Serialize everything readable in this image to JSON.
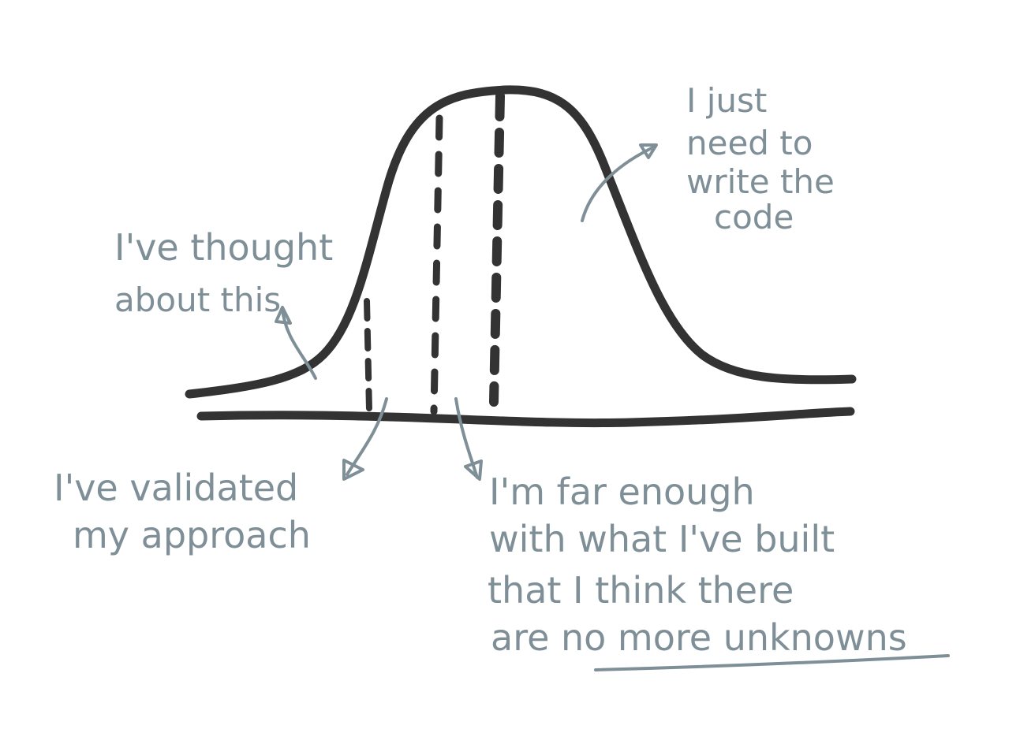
{
  "annotations": [
    {
      "lines": [
        "I've thought",
        "about this"
      ]
    },
    {
      "lines": [
        "I just",
        "need to",
        "write the",
        "code"
      ]
    },
    {
      "lines": [
        "I've validated",
        "my approach"
      ]
    },
    {
      "lines": [
        "I'm far enough",
        "with what I've built",
        "that I think there",
        "are no more unknowns"
      ]
    }
  ]
}
